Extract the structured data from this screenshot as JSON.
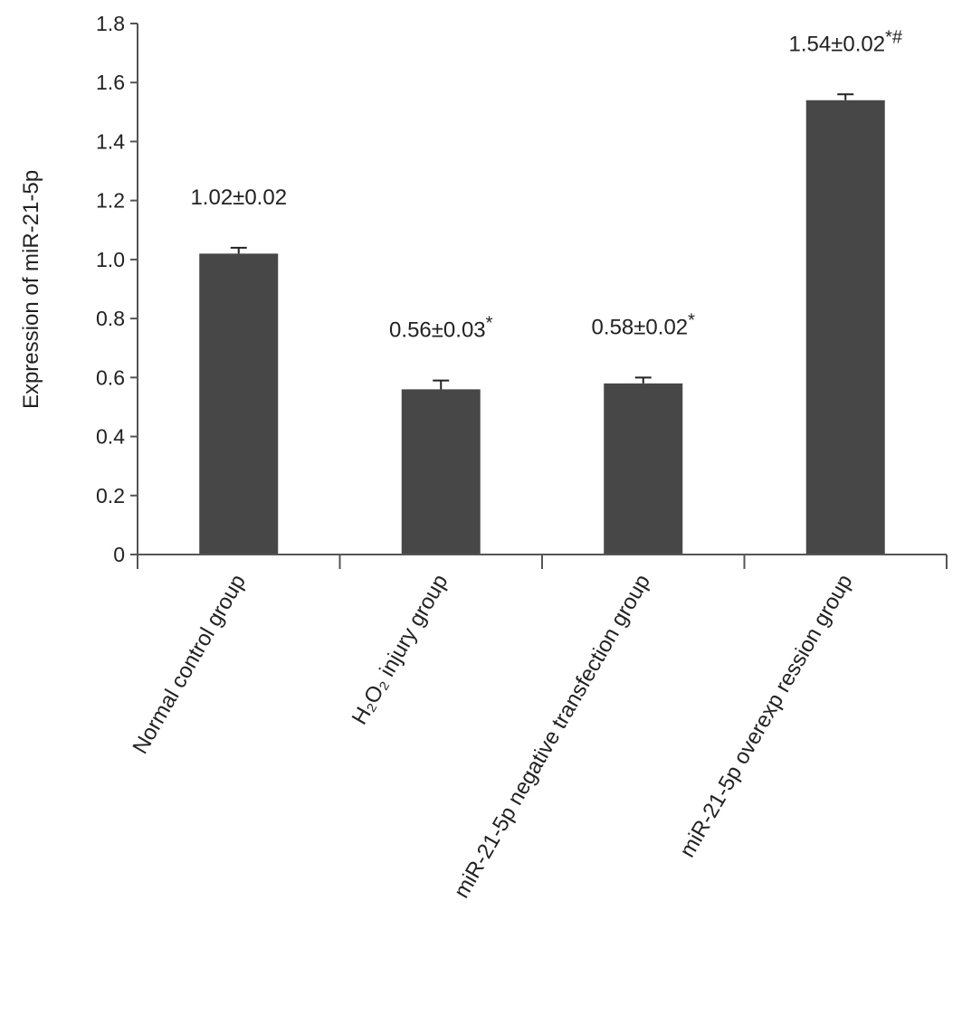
{
  "chart_data": {
    "type": "bar",
    "ylabel": "Expression of miR-21-5p",
    "ylim": [
      0,
      1.8
    ],
    "yticks": [
      0,
      0.2,
      0.4,
      0.6,
      0.8,
      1.0,
      1.2,
      1.4,
      1.6,
      1.8
    ],
    "ytick_labels": [
      "0",
      "0.2",
      "0.4",
      "0.6",
      "0.8",
      "1.0",
      "1.2",
      "1.4",
      "1.6",
      "1.8"
    ],
    "grid": false,
    "bar_color": "#474747",
    "categories": [
      "Normal control group",
      "H₂O₂ injury  group",
      "miR-21-5p negative transfection group",
      "miR-21-5p overexp ression group"
    ],
    "values": [
      1.02,
      0.56,
      0.58,
      1.54
    ],
    "errors": [
      0.02,
      0.03,
      0.02,
      0.02
    ],
    "data_labels": [
      {
        "text": "1.02±0.02",
        "mark": ""
      },
      {
        "text": "0.56±0.03",
        "mark": "*"
      },
      {
        "text": "0.58±0.02",
        "mark": "*"
      },
      {
        "text": "1.54±0.02",
        "mark": "*#"
      }
    ]
  }
}
